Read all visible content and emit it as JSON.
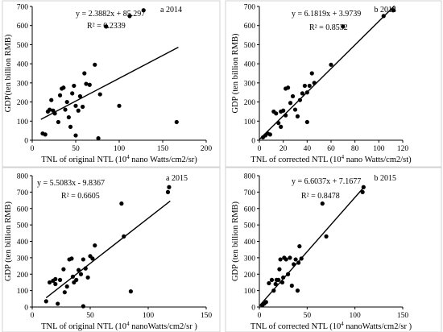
{
  "chart_data": [
    {
      "type": "scatter",
      "panel_label": "a 2014",
      "equation": "y = 2.3882x + 85.297",
      "r2_label": "R² = 0.2339",
      "xlabel_main": "TNL of original NTL (10",
      "xlabel_sup": "4",
      "xlabel_rest": " nano Watts/cm2/sr)",
      "ylabel": "GDP(ten billion RMB)",
      "xlim": [
        0,
        200
      ],
      "ylim": [
        0,
        700
      ],
      "xticks": [
        0,
        50,
        100,
        150,
        200
      ],
      "yticks": [
        0,
        100,
        200,
        300,
        400,
        500,
        600,
        700
      ],
      "fit": {
        "slope": 2.3882,
        "intercept": 85.297,
        "x_range": [
          10,
          168
        ]
      },
      "points": [
        [
          12,
          35
        ],
        [
          15,
          30
        ],
        [
          18,
          150
        ],
        [
          20,
          160
        ],
        [
          22,
          210
        ],
        [
          24,
          155
        ],
        [
          26,
          140
        ],
        [
          30,
          95
        ],
        [
          32,
          235
        ],
        [
          34,
          270
        ],
        [
          36,
          275
        ],
        [
          38,
          160
        ],
        [
          40,
          200
        ],
        [
          42,
          120
        ],
        [
          44,
          70
        ],
        [
          46,
          245
        ],
        [
          48,
          285
        ],
        [
          50,
          25
        ],
        [
          50,
          180
        ],
        [
          53,
          155
        ],
        [
          55,
          230
        ],
        [
          58,
          175
        ],
        [
          60,
          350
        ],
        [
          62,
          295
        ],
        [
          66,
          290
        ],
        [
          72,
          395
        ],
        [
          76,
          10
        ],
        [
          78,
          240
        ],
        [
          85,
          595
        ],
        [
          100,
          180
        ],
        [
          112,
          650
        ],
        [
          128,
          680
        ],
        [
          166,
          95
        ]
      ]
    },
    {
      "type": "scatter",
      "panel_label": "b 2014",
      "equation": "y = 6.1819x + 3.9739",
      "r2_label": "R² = 0.8532",
      "xlabel_main": "TNL of corrected NTL (10",
      "xlabel_sup": "4",
      "xlabel_rest": " nano Watts/cm2/st)",
      "ylabel": "GDP (ten billion RMB)",
      "xlim": [
        0,
        120
      ],
      "ylim": [
        0,
        700
      ],
      "xticks": [
        0,
        20,
        40,
        60,
        80,
        100,
        120
      ],
      "yticks": [
        0,
        100,
        200,
        300,
        400,
        500,
        600,
        700
      ],
      "fit": {
        "slope": 6.1819,
        "intercept": 3.9739,
        "x_range": [
          0,
          113
        ]
      },
      "points": [
        [
          3,
          15
        ],
        [
          5,
          25
        ],
        [
          7,
          35
        ],
        [
          9,
          30
        ],
        [
          12,
          150
        ],
        [
          14,
          140
        ],
        [
          16,
          90
        ],
        [
          18,
          70
        ],
        [
          18,
          150
        ],
        [
          20,
          155
        ],
        [
          22,
          270
        ],
        [
          22,
          130
        ],
        [
          24,
          275
        ],
        [
          26,
          195
        ],
        [
          28,
          230
        ],
        [
          30,
          160
        ],
        [
          32,
          125
        ],
        [
          34,
          210
        ],
        [
          36,
          245
        ],
        [
          38,
          285
        ],
        [
          40,
          250
        ],
        [
          40,
          95
        ],
        [
          42,
          285
        ],
        [
          44,
          350
        ],
        [
          46,
          300
        ],
        [
          60,
          395
        ],
        [
          70,
          595
        ],
        [
          104,
          650
        ],
        [
          112,
          680
        ]
      ]
    },
    {
      "type": "scatter",
      "panel_label": "a 2015",
      "equation": "y = 5.5083x - 9.8367",
      "r2_label": "R² = 0.6605",
      "xlabel_main": "TNL of original NTL (10",
      "xlabel_sup": "4",
      "xlabel_rest": " nanoWatts/cm2/sr )",
      "ylabel": "GDP (ten billion RMB)",
      "xlim": [
        0,
        150
      ],
      "ylim": [
        0,
        800
      ],
      "xticks": [
        0,
        50,
        100,
        150
      ],
      "yticks": [
        0,
        100,
        200,
        300,
        400,
        500,
        600,
        700,
        800
      ],
      "fit": {
        "slope": 5.5083,
        "intercept": -9.8367,
        "x_range": [
          12,
          119
        ]
      },
      "points": [
        [
          12,
          35
        ],
        [
          15,
          150
        ],
        [
          18,
          160
        ],
        [
          20,
          170
        ],
        [
          20,
          140
        ],
        [
          22,
          20
        ],
        [
          24,
          165
        ],
        [
          27,
          230
        ],
        [
          28,
          90
        ],
        [
          30,
          125
        ],
        [
          32,
          290
        ],
        [
          34,
          295
        ],
        [
          35,
          185
        ],
        [
          36,
          150
        ],
        [
          38,
          165
        ],
        [
          40,
          225
        ],
        [
          42,
          200
        ],
        [
          44,
          5
        ],
        [
          44,
          290
        ],
        [
          46,
          235
        ],
        [
          48,
          180
        ],
        [
          50,
          310
        ],
        [
          52,
          295
        ],
        [
          54,
          375
        ],
        [
          77,
          630
        ],
        [
          79,
          430
        ],
        [
          85,
          95
        ],
        [
          117,
          700
        ],
        [
          118,
          730
        ]
      ]
    },
    {
      "type": "scatter",
      "panel_label": "b 2015",
      "equation": "y = 6.6037x + 7.1677",
      "r2_label": "R² = 0.8478",
      "xlabel_main": "TNL of corrected NTL (10",
      "xlabel_sup": "4",
      "xlabel_rest": " nanoWatts/cm2/sr )",
      "ylabel": "GDP (ten billion RMB)",
      "xlim": [
        0,
        150
      ],
      "ylim": [
        0,
        800
      ],
      "xticks": [
        0,
        50,
        100,
        150
      ],
      "yticks": [
        0,
        100,
        200,
        300,
        400,
        500,
        600,
        700,
        800
      ],
      "fit": {
        "slope": 6.6037,
        "intercept": 7.1677,
        "x_range": [
          0,
          109
        ]
      },
      "points": [
        [
          3,
          10
        ],
        [
          5,
          20
        ],
        [
          7,
          30
        ],
        [
          10,
          145
        ],
        [
          13,
          165
        ],
        [
          15,
          100
        ],
        [
          17,
          140
        ],
        [
          18,
          165
        ],
        [
          20,
          165
        ],
        [
          21,
          230
        ],
        [
          22,
          290
        ],
        [
          24,
          150
        ],
        [
          25,
          180
        ],
        [
          26,
          300
        ],
        [
          28,
          290
        ],
        [
          30,
          200
        ],
        [
          32,
          300
        ],
        [
          34,
          130
        ],
        [
          36,
          260
        ],
        [
          38,
          290
        ],
        [
          40,
          100
        ],
        [
          41,
          270
        ],
        [
          42,
          370
        ],
        [
          44,
          295
        ],
        [
          66,
          630
        ],
        [
          70,
          430
        ],
        [
          108,
          700
        ],
        [
          109,
          730
        ]
      ]
    }
  ]
}
